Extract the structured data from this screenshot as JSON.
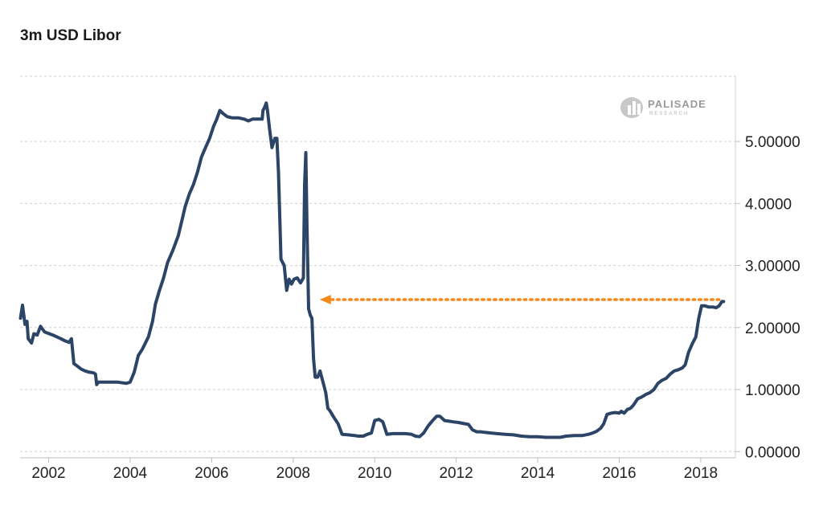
{
  "chart_data": {
    "type": "line",
    "title": "3m USD Libor",
    "xlabel": "",
    "ylabel": "",
    "xlim": [
      2001.3,
      2018.85
    ],
    "ylim": [
      -0.1,
      6.05
    ],
    "x_ticks": [
      {
        "value": 2002.0,
        "label": "2002"
      },
      {
        "value": 2004.0,
        "label": "2004"
      },
      {
        "value": 2006.0,
        "label": "2006"
      },
      {
        "value": 2008.0,
        "label": "2008"
      },
      {
        "value": 2010.0,
        "label": "2010"
      },
      {
        "value": 2012.0,
        "label": "2012"
      },
      {
        "value": 2014.0,
        "label": "2014"
      },
      {
        "value": 2016.0,
        "label": "2016"
      },
      {
        "value": 2018.0,
        "label": "2018"
      }
    ],
    "y_ticks": [
      {
        "value": 0,
        "label": "0.00000"
      },
      {
        "value": 1,
        "label": "1.00000"
      },
      {
        "value": 2,
        "label": "2.00000"
      },
      {
        "value": 3,
        "label": "3.00000"
      },
      {
        "value": 4,
        "label": "4.0000"
      },
      {
        "value": 5,
        "label": "5.00000"
      }
    ],
    "grid": true,
    "grid_style": "dashed horizontal",
    "line_color": "#2c4466",
    "series": [
      {
        "points": [
          [
            2001.31,
            2.15
          ],
          [
            2001.36,
            2.36
          ],
          [
            2001.42,
            2.05
          ],
          [
            2001.47,
            2.1
          ],
          [
            2001.5,
            1.82
          ],
          [
            2001.58,
            1.75
          ],
          [
            2001.64,
            1.9
          ],
          [
            2001.72,
            1.88
          ],
          [
            2001.8,
            2.02
          ],
          [
            2001.9,
            1.93
          ],
          [
            2002.1,
            1.88
          ],
          [
            2002.3,
            1.82
          ],
          [
            2002.42,
            1.78
          ],
          [
            2002.5,
            1.76
          ],
          [
            2002.56,
            1.82
          ],
          [
            2002.62,
            1.42
          ],
          [
            2002.7,
            1.38
          ],
          [
            2002.8,
            1.33
          ],
          [
            2002.9,
            1.3
          ],
          [
            2003.0,
            1.28
          ],
          [
            2003.1,
            1.27
          ],
          [
            2003.15,
            1.25
          ],
          [
            2003.18,
            1.08
          ],
          [
            2003.22,
            1.12
          ],
          [
            2003.3,
            1.12
          ],
          [
            2003.5,
            1.12
          ],
          [
            2003.7,
            1.12
          ],
          [
            2003.9,
            1.1
          ],
          [
            2004.0,
            1.12
          ],
          [
            2004.1,
            1.28
          ],
          [
            2004.2,
            1.55
          ],
          [
            2004.3,
            1.65
          ],
          [
            2004.45,
            1.85
          ],
          [
            2004.55,
            2.1
          ],
          [
            2004.62,
            2.38
          ],
          [
            2004.72,
            2.6
          ],
          [
            2004.82,
            2.8
          ],
          [
            2004.92,
            3.05
          ],
          [
            2005.05,
            3.25
          ],
          [
            2005.18,
            3.48
          ],
          [
            2005.28,
            3.75
          ],
          [
            2005.35,
            3.95
          ],
          [
            2005.45,
            4.15
          ],
          [
            2005.55,
            4.3
          ],
          [
            2005.65,
            4.5
          ],
          [
            2005.75,
            4.75
          ],
          [
            2005.85,
            4.9
          ],
          [
            2005.95,
            5.05
          ],
          [
            2006.05,
            5.25
          ],
          [
            2006.12,
            5.35
          ],
          [
            2006.2,
            5.5
          ],
          [
            2006.28,
            5.45
          ],
          [
            2006.38,
            5.4
          ],
          [
            2006.5,
            5.38
          ],
          [
            2006.65,
            5.38
          ],
          [
            2006.8,
            5.36
          ],
          [
            2006.9,
            5.33
          ],
          [
            2007.0,
            5.36
          ],
          [
            2007.1,
            5.36
          ],
          [
            2007.18,
            5.36
          ],
          [
            2007.24,
            5.36
          ],
          [
            2007.26,
            5.5
          ],
          [
            2007.3,
            5.55
          ],
          [
            2007.34,
            5.62
          ],
          [
            2007.37,
            5.5
          ],
          [
            2007.42,
            5.2
          ],
          [
            2007.48,
            4.9
          ],
          [
            2007.55,
            5.05
          ],
          [
            2007.6,
            5.05
          ],
          [
            2007.64,
            4.5
          ],
          [
            2007.7,
            3.1
          ],
          [
            2007.78,
            3.0
          ],
          [
            2007.84,
            2.6
          ],
          [
            2007.9,
            2.78
          ],
          [
            2007.96,
            2.7
          ],
          [
            2008.02,
            2.78
          ],
          [
            2008.1,
            2.8
          ],
          [
            2008.18,
            2.72
          ],
          [
            2008.25,
            2.8
          ],
          [
            2008.28,
            4.3
          ],
          [
            2008.31,
            4.82
          ],
          [
            2008.34,
            3.6
          ],
          [
            2008.38,
            2.3
          ],
          [
            2008.42,
            2.2
          ],
          [
            2008.46,
            2.15
          ],
          [
            2008.5,
            1.5
          ],
          [
            2008.54,
            1.2
          ],
          [
            2008.6,
            1.2
          ],
          [
            2008.66,
            1.3
          ],
          [
            2008.72,
            1.15
          ],
          [
            2008.8,
            0.95
          ],
          [
            2008.85,
            0.7
          ],
          [
            2008.9,
            0.66
          ],
          [
            2009.0,
            0.55
          ],
          [
            2009.1,
            0.45
          ],
          [
            2009.2,
            0.28
          ],
          [
            2009.35,
            0.27
          ],
          [
            2009.5,
            0.26
          ],
          [
            2009.6,
            0.25
          ],
          [
            2009.72,
            0.25
          ],
          [
            2009.82,
            0.28
          ],
          [
            2009.92,
            0.3
          ],
          [
            2010.0,
            0.5
          ],
          [
            2010.1,
            0.52
          ],
          [
            2010.2,
            0.48
          ],
          [
            2010.3,
            0.28
          ],
          [
            2010.45,
            0.29
          ],
          [
            2010.6,
            0.29
          ],
          [
            2010.75,
            0.29
          ],
          [
            2010.9,
            0.28
          ],
          [
            2011.0,
            0.25
          ],
          [
            2011.1,
            0.24
          ],
          [
            2011.2,
            0.3
          ],
          [
            2011.32,
            0.42
          ],
          [
            2011.42,
            0.5
          ],
          [
            2011.52,
            0.57
          ],
          [
            2011.6,
            0.57
          ],
          [
            2011.72,
            0.5
          ],
          [
            2011.82,
            0.49
          ],
          [
            2011.92,
            0.48
          ],
          [
            2012.05,
            0.47
          ],
          [
            2012.2,
            0.45
          ],
          [
            2012.3,
            0.44
          ],
          [
            2012.4,
            0.35
          ],
          [
            2012.5,
            0.32
          ],
          [
            2012.6,
            0.32
          ],
          [
            2012.7,
            0.31
          ],
          [
            2012.85,
            0.3
          ],
          [
            2013.0,
            0.29
          ],
          [
            2013.2,
            0.28
          ],
          [
            2013.4,
            0.27
          ],
          [
            2013.6,
            0.25
          ],
          [
            2013.8,
            0.24
          ],
          [
            2014.0,
            0.24
          ],
          [
            2014.2,
            0.23
          ],
          [
            2014.4,
            0.23
          ],
          [
            2014.55,
            0.23
          ],
          [
            2014.7,
            0.25
          ],
          [
            2014.9,
            0.26
          ],
          [
            2015.1,
            0.26
          ],
          [
            2015.25,
            0.28
          ],
          [
            2015.35,
            0.3
          ],
          [
            2015.45,
            0.33
          ],
          [
            2015.55,
            0.38
          ],
          [
            2015.62,
            0.45
          ],
          [
            2015.7,
            0.6
          ],
          [
            2015.8,
            0.62
          ],
          [
            2015.9,
            0.63
          ],
          [
            2016.0,
            0.62
          ],
          [
            2016.05,
            0.65
          ],
          [
            2016.12,
            0.62
          ],
          [
            2016.2,
            0.68
          ],
          [
            2016.28,
            0.7
          ],
          [
            2016.35,
            0.75
          ],
          [
            2016.45,
            0.85
          ],
          [
            2016.55,
            0.88
          ],
          [
            2016.65,
            0.92
          ],
          [
            2016.75,
            0.95
          ],
          [
            2016.85,
            1.0
          ],
          [
            2016.95,
            1.1
          ],
          [
            2017.05,
            1.15
          ],
          [
            2017.15,
            1.18
          ],
          [
            2017.25,
            1.25
          ],
          [
            2017.35,
            1.3
          ],
          [
            2017.45,
            1.32
          ],
          [
            2017.55,
            1.35
          ],
          [
            2017.62,
            1.4
          ],
          [
            2017.7,
            1.6
          ],
          [
            2017.8,
            1.75
          ],
          [
            2017.88,
            1.85
          ],
          [
            2017.95,
            2.15
          ],
          [
            2018.02,
            2.35
          ],
          [
            2018.1,
            2.35
          ],
          [
            2018.2,
            2.33
          ],
          [
            2018.3,
            2.33
          ],
          [
            2018.38,
            2.32
          ],
          [
            2018.45,
            2.35
          ],
          [
            2018.52,
            2.42
          ],
          [
            2018.56,
            2.42
          ]
        ]
      }
    ],
    "annotations": [
      {
        "type": "dotted-arrow",
        "color": "#f28a1e",
        "y": 2.45,
        "x_from": 2018.45,
        "x_to": 2008.65,
        "direction": "left"
      }
    ]
  },
  "watermark": {
    "name": "PALISADE",
    "sub": "RESEARCH"
  }
}
